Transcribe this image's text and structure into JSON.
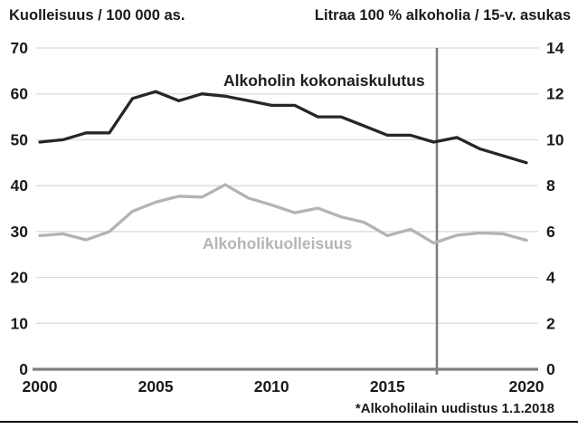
{
  "figure": {
    "left_axis_title": "Kuolleisuus / 100 000 as.",
    "right_axis_title": "Litraa 100 % alkoholia / 15-v. asukas",
    "footnote": "*Alkoholilain uudistus 1.1.2018"
  },
  "chart_data": {
    "type": "line",
    "x": [
      2000,
      2001,
      2002,
      2003,
      2004,
      2005,
      2006,
      2007,
      2008,
      2009,
      2010,
      2011,
      2012,
      2013,
      2014,
      2015,
      2016,
      2017,
      2018,
      2019,
      2020,
      2021
    ],
    "x_tick_labels": [
      "2000",
      "2005",
      "2010",
      "2015",
      "2020"
    ],
    "left_axis": {
      "label": "Kuolleisuus / 100 000 as.",
      "min": 0,
      "max": 70,
      "step": 10,
      "ticks": [
        0,
        10,
        20,
        30,
        40,
        50,
        60,
        70
      ]
    },
    "right_axis": {
      "label": "Litraa 100 % alkoholia / 15-v. asukas",
      "min": 0,
      "max": 14,
      "step": 2,
      "ticks": [
        0,
        2,
        4,
        6,
        8,
        10,
        12,
        14
      ]
    },
    "grid": "horizontal gridlines on",
    "legend_position": "inline labels on plot",
    "series": [
      {
        "name": "Alkoholin kokonaiskulutus",
        "axis": "right",
        "units": "litraa 100 % alkoholia / 15-v. asukas",
        "color": "#262626",
        "values": [
          9.9,
          10.0,
          10.3,
          10.3,
          11.8,
          12.1,
          11.7,
          12.0,
          11.9,
          11.7,
          11.5,
          11.5,
          11.0,
          11.0,
          10.6,
          10.2,
          10.2,
          9.9,
          10.1,
          9.6,
          9.3,
          9.0
        ]
      },
      {
        "name": "Alkoholikuolleisuus",
        "axis": "left",
        "units": "kuolleisuus / 100 000 as.",
        "color": "#b3b3b3",
        "values": [
          29.1,
          29.5,
          28.2,
          30.0,
          34.4,
          36.4,
          37.7,
          37.5,
          40.2,
          37.3,
          35.8,
          34.1,
          35.1,
          33.2,
          32.0,
          29.1,
          30.5,
          27.5,
          29.2,
          29.7,
          29.5,
          28.1
        ]
      }
    ],
    "reference_line": {
      "label": "*Alkoholilain uudistus 1.1.2018",
      "position": "between 2017 and 2018",
      "color": "#7f7f7f"
    },
    "colors": {
      "gridline": "#d9d9d9",
      "axis_line": "#7f7f7f",
      "text": "#1a1a1a",
      "consumption_line": "#262626",
      "mortality_line": "#b3b3b3",
      "mortality_label": "#b5b5b5"
    }
  }
}
